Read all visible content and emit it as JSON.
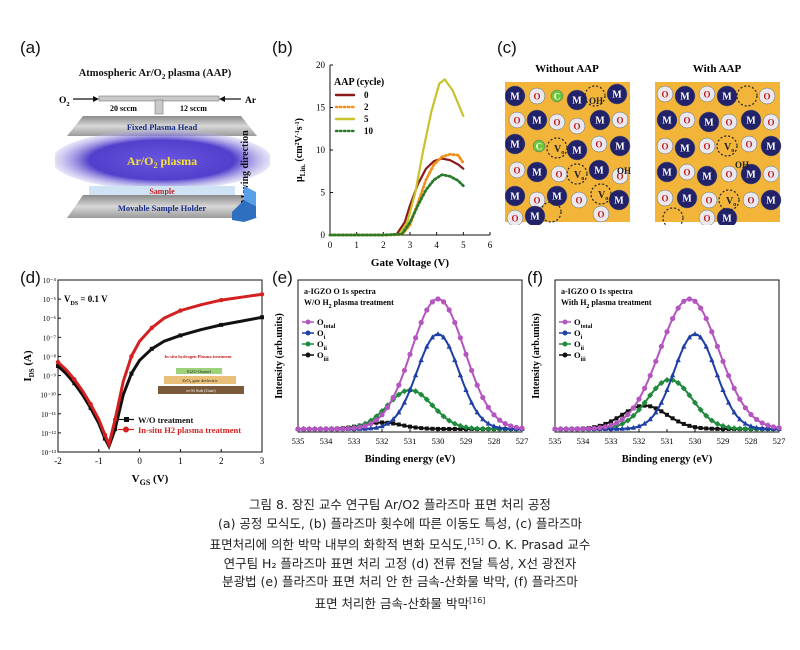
{
  "panels": {
    "a": {
      "label": "(a)",
      "title": "Atmospheric Ar/O",
      "title_sub": "2",
      "title_end": " plasma (AAP)",
      "o2_in": "O",
      "o2_sub": "2",
      "o2_flow": "20 sccm",
      "ar_flow": "12 sccm",
      "ar_in": "Ar",
      "head": "Fixed Plasma Head",
      "plasma": "Ar/O",
      "plasma_sub": "2",
      "plasma_end": " plasma",
      "sample": "Sample",
      "holder": "Movable Sample Holder",
      "moving": "Moving direction"
    },
    "b": {
      "label": "(b)",
      "legend_title": "AAP (cycle)",
      "ylabel": "μ",
      "ylabel_sub": "Lin.",
      "ylabel_unit": " (cm",
      "ylabel_unit2": "V",
      "ylabel_unit3": "s",
      "ylabel_unit4": ")",
      "xlabel": "Gate Voltage (V)"
    },
    "c": {
      "label": "(c)",
      "left_title": "Without AAP",
      "right_title": "With AAP",
      "atom_m": "M",
      "atom_o": "O",
      "atom_c": "C",
      "atom_v": "V",
      "atom_v_sub": "o",
      "oh": "OH"
    },
    "d": {
      "label": "(d)",
      "vds": "V",
      "vds_sub": "DS",
      "vds_end": " = 0.1 V",
      "ylabel": "I",
      "ylabel_sub": "DS",
      "ylabel_end": " (A)",
      "xlabel": "V",
      "xlabel_sub": "GS",
      "xlabel_end": " (V)",
      "inset_top": "In-situ hydrogen Plasma treatment",
      "inset_channel": "IGZO Channel",
      "inset_gate": "ZrO₂ gate dielectric",
      "inset_sub": "n+Si Sub (Gate)"
    },
    "e": {
      "label": "(e)",
      "title1": "a-IGZO  O 1s spectra",
      "title2": "W/O H",
      "title2_sub": "2",
      "title2_end": " plasma treatment",
      "ylabel": "Intensity (arb.units)",
      "xlabel": "Binding energy (eV)"
    },
    "f": {
      "label": "(f)",
      "title1": "a-IGZO  O 1s spectra",
      "title2": "With H",
      "title2_sub": "2",
      "title2_end": " plasma treatment",
      "ylabel": "Intensity (arb.units)",
      "xlabel": "Binding energy (eV)"
    }
  },
  "xps_legend": [
    {
      "name": "O",
      "sub": "total",
      "color": "#b455c0"
    },
    {
      "name": "O",
      "sub": "i",
      "color": "#1e3fa6"
    },
    {
      "name": "O",
      "sub": "ii",
      "color": "#1f8a3c"
    },
    {
      "name": "O",
      "sub": "iii",
      "color": "#111111"
    }
  ],
  "chart_data": [
    {
      "id": "b",
      "type": "line",
      "xlabel": "Gate Voltage (V)",
      "xlim": [
        0,
        6
      ],
      "ylim": [
        0,
        20
      ],
      "xticks": [
        "0",
        "1",
        "2",
        "3",
        "4",
        "5",
        "6"
      ],
      "yticks": [
        "0",
        "5",
        "10",
        "15",
        "20"
      ],
      "legend_title": "AAP (cycle)",
      "series": [
        {
          "name": "0",
          "color": "#8b1a1a",
          "style": "solid",
          "points": [
            [
              0,
              0
            ],
            [
              1,
              0
            ],
            [
              2,
              0
            ],
            [
              2.5,
              0.1
            ],
            [
              2.8,
              1.5
            ],
            [
              3.0,
              3.5
            ],
            [
              3.3,
              6
            ],
            [
              3.6,
              7.8
            ],
            [
              3.9,
              8.7
            ],
            [
              4.2,
              9.0
            ],
            [
              4.5,
              8.8
            ],
            [
              4.8,
              8.3
            ],
            [
              5,
              7.8
            ]
          ]
        },
        {
          "name": "2",
          "color": "#f0901a",
          "style": "dotted",
          "points": [
            [
              0,
              0
            ],
            [
              1,
              0
            ],
            [
              2,
              0
            ],
            [
              2.7,
              0.05
            ],
            [
              3.0,
              1.2
            ],
            [
              3.3,
              3.8
            ],
            [
              3.6,
              6.5
            ],
            [
              3.9,
              8.3
            ],
            [
              4.2,
              9.2
            ],
            [
              4.5,
              9.5
            ],
            [
              4.8,
              9.4
            ],
            [
              5,
              8.5
            ]
          ]
        },
        {
          "name": "5",
          "color": "#c8c32a",
          "style": "solid",
          "points": [
            [
              0,
              0
            ],
            [
              1,
              0
            ],
            [
              2,
              0
            ],
            [
              2.6,
              0.1
            ],
            [
              2.9,
              1.5
            ],
            [
              3.2,
              5
            ],
            [
              3.5,
              10
            ],
            [
              3.8,
              14.5
            ],
            [
              4.1,
              17.8
            ],
            [
              4.3,
              18.3
            ],
            [
              4.6,
              17
            ],
            [
              5,
              14
            ]
          ]
        },
        {
          "name": "10",
          "color": "#2a7a2a",
          "style": "dotted",
          "points": [
            [
              0,
              0
            ],
            [
              1,
              0
            ],
            [
              2,
              0
            ],
            [
              2.7,
              0.1
            ],
            [
              3.0,
              1.5
            ],
            [
              3.3,
              3.5
            ],
            [
              3.6,
              5.3
            ],
            [
              3.9,
              6.5
            ],
            [
              4.2,
              7.1
            ],
            [
              4.5,
              6.9
            ],
            [
              4.8,
              6.4
            ],
            [
              5,
              5.8
            ]
          ]
        }
      ]
    },
    {
      "id": "d",
      "type": "line",
      "xlabel": "VGS (V)",
      "ylabel": "IDS (A)",
      "xlim": [
        -2,
        3
      ],
      "ylim": [
        -13,
        -4
      ],
      "ylog": true,
      "xticks": [
        "-2",
        "-1",
        "0",
        "1",
        "2",
        "3"
      ],
      "yticks": [
        "10⁻¹³",
        "10⁻¹²",
        "10⁻¹¹",
        "10⁻¹⁰",
        "10⁻⁹",
        "10⁻⁸",
        "10⁻⁷",
        "10⁻⁶",
        "10⁻⁵",
        "10⁻⁴"
      ],
      "series": [
        {
          "name": "W/O treatment",
          "color": "#111111",
          "marker": "square",
          "points": [
            [
              -2,
              -8.5
            ],
            [
              -1.8,
              -8.9
            ],
            [
              -1.6,
              -9.4
            ],
            [
              -1.4,
              -10.0
            ],
            [
              -1.2,
              -10.7
            ],
            [
              -1.0,
              -11.5
            ],
            [
              -0.85,
              -12.3
            ],
            [
              -0.75,
              -12.7
            ],
            [
              -0.6,
              -11.8
            ],
            [
              -0.4,
              -10.0
            ],
            [
              -0.2,
              -8.9
            ],
            [
              0,
              -8.2
            ],
            [
              0.3,
              -7.6
            ],
            [
              0.6,
              -7.2
            ],
            [
              1,
              -6.9
            ],
            [
              1.5,
              -6.6
            ],
            [
              2,
              -6.35
            ],
            [
              2.5,
              -6.15
            ],
            [
              3,
              -5.95
            ]
          ]
        },
        {
          "name": "In-situ H2 plasma treatment",
          "color": "#d42020",
          "marker": "circle",
          "points": [
            [
              -2,
              -8.3
            ],
            [
              -1.8,
              -8.7
            ],
            [
              -1.6,
              -9.2
            ],
            [
              -1.4,
              -9.8
            ],
            [
              -1.2,
              -10.5
            ],
            [
              -1.0,
              -11.3
            ],
            [
              -0.85,
              -12.1
            ],
            [
              -0.75,
              -12.6
            ],
            [
              -0.6,
              -11.3
            ],
            [
              -0.4,
              -9.3
            ],
            [
              -0.2,
              -8.0
            ],
            [
              0,
              -7.2
            ],
            [
              0.3,
              -6.5
            ],
            [
              0.6,
              -6.0
            ],
            [
              1,
              -5.6
            ],
            [
              1.5,
              -5.3
            ],
            [
              2,
              -5.05
            ],
            [
              2.5,
              -4.9
            ],
            [
              3,
              -4.75
            ]
          ]
        }
      ]
    },
    {
      "id": "e",
      "type": "line",
      "xlabel": "Binding energy (eV)",
      "ylabel": "Intensity (arb.units)",
      "xlim": [
        535,
        527
      ],
      "xticks": [
        "535",
        "534",
        "533",
        "532",
        "531",
        "530",
        "529",
        "528",
        "527"
      ],
      "series": [
        {
          "name": "O total",
          "color": "#b455c0",
          "center": 530.0,
          "sigma": 0.95,
          "amp": 1.0
        },
        {
          "name": "O i",
          "color": "#1e3fa6",
          "center": 530.0,
          "sigma": 0.75,
          "amp": 0.73
        },
        {
          "name": "O ii",
          "color": "#1f8a3c",
          "center": 531.0,
          "sigma": 0.8,
          "amp": 0.3
        },
        {
          "name": "O iii",
          "color": "#111111",
          "center": 532.0,
          "sigma": 0.7,
          "amp": 0.05
        }
      ]
    },
    {
      "id": "f",
      "type": "line",
      "xlabel": "Binding energy (eV)",
      "ylabel": "Intensity (arb.units)",
      "xlim": [
        535,
        527
      ],
      "xticks": [
        "535",
        "534",
        "533",
        "532",
        "531",
        "530",
        "529",
        "528",
        "527"
      ],
      "series": [
        {
          "name": "O total",
          "color": "#b455c0",
          "center": 530.2,
          "sigma": 1.05,
          "amp": 1.0
        },
        {
          "name": "O i",
          "color": "#1e3fa6",
          "center": 530.0,
          "sigma": 0.75,
          "amp": 0.73
        },
        {
          "name": "O ii",
          "color": "#1f8a3c",
          "center": 530.9,
          "sigma": 0.8,
          "amp": 0.38
        },
        {
          "name": "O iii",
          "color": "#111111",
          "center": 531.8,
          "sigma": 0.8,
          "amp": 0.18
        }
      ]
    }
  ],
  "caption": {
    "line1": "그림 8. 장진 교수 연구팀 Ar/O2 플라즈마 표면 처리 공정",
    "line2": "(a) 공정 모식도, (b) 플라즈마 횟수에 따른 이동도 특성, (c) 플라즈마",
    "line3a": "표면처리에 의한 박막 내부의 화학적 변화 모식도,",
    "ref1": "[15]",
    "line3b": " O. K. Prasad 교수",
    "line4": "연구팀 H₂ 플라즈마 표면 처리 고정 (d) 전류 전달 특성, X선 광전자",
    "line5": "분광법 (e) 플라즈마 표면 처리 안 한 금속-산화물 박막, (f) 플라즈마",
    "line6": "표면 처리한 금속-산화물 박막",
    "ref2": "[16]"
  }
}
